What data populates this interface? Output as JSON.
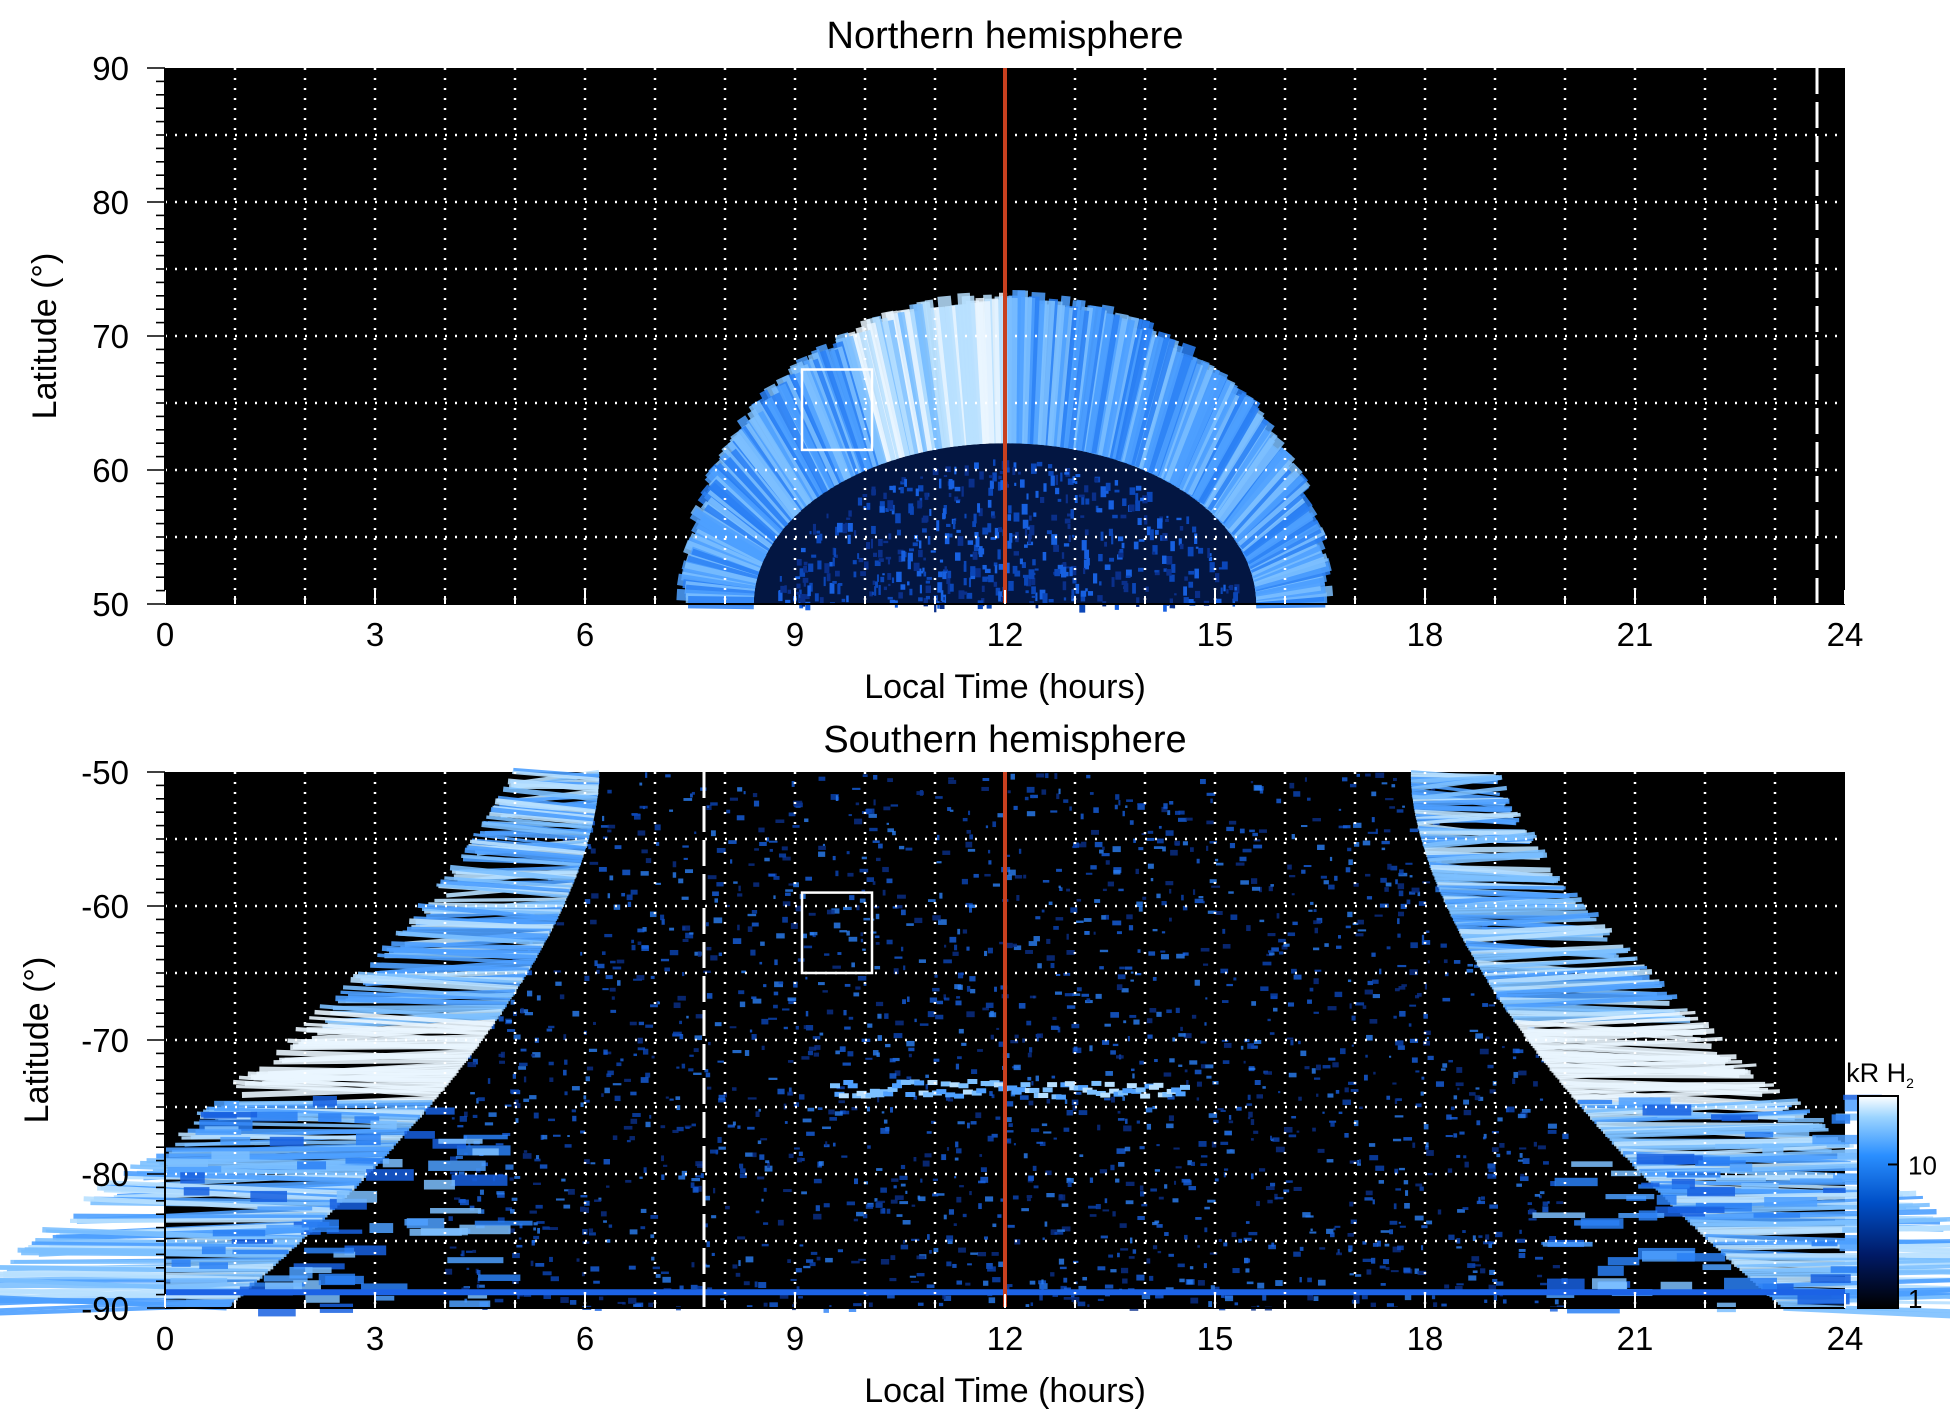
{
  "chart_data": [
    {
      "type": "heatmap",
      "title": "Northern hemisphere",
      "xlabel": "Local Time (hours)",
      "ylabel": "Latitude (°)",
      "xlim": [
        0,
        24
      ],
      "ylim": [
        50,
        90
      ],
      "x_ticks": [
        "0",
        "3",
        "6",
        "9",
        "12",
        "15",
        "18",
        "21",
        "24"
      ],
      "y_ticks": [
        "90",
        "80",
        "70",
        "60",
        "50"
      ],
      "grid": true,
      "oval": {
        "center_lt": 12.0,
        "half_width_lt": 4.6,
        "inner_lat_at_noon": 62,
        "outer_lat_at_noon": 73,
        "peak_brightness_lt": 12.9
      },
      "box": {
        "lt": [
          9.1,
          10.1
        ],
        "lat": [
          61.5,
          67.5
        ]
      },
      "vertical_lines": [
        {
          "lt": 12.0,
          "color": "#c8401f",
          "style": "solid"
        },
        {
          "lt": 23.6,
          "color": "#ffffff",
          "style": "dashed"
        }
      ]
    },
    {
      "type": "heatmap",
      "title": "Southern hemisphere",
      "xlabel": "Local Time (hours)",
      "ylabel": "Latitude (°)",
      "xlim": [
        0,
        24
      ],
      "ylim": [
        -90,
        -50
      ],
      "x_ticks": [
        "0",
        "3",
        "6",
        "9",
        "12",
        "15",
        "18",
        "21",
        "24"
      ],
      "y_ticks": [
        "-50",
        "-60",
        "-70",
        "-80",
        "-90"
      ],
      "grid": true,
      "oval": {
        "dawn_arc_lt_at_-50": 6.0,
        "dusk_arc_lt_at_-50": 18.0,
        "peak_lat": -71.5,
        "noon_ring_lat": -73.5
      },
      "box": {
        "lt": [
          9.1,
          10.1
        ],
        "lat": [
          -65,
          -59
        ]
      },
      "vertical_lines": [
        {
          "lt": 12.0,
          "color": "#c8401f",
          "style": "solid"
        },
        {
          "lt": 7.7,
          "color": "#ffffff",
          "style": "dashed"
        }
      ]
    }
  ],
  "colorbar": {
    "label_prefix": "kR H",
    "label_sub": "2",
    "ticks": [
      "1",
      "10"
    ],
    "scale": "log",
    "range": [
      1,
      30
    ],
    "colors": [
      "#000000",
      "#001a66",
      "#0050c8",
      "#2a8fff",
      "#9cd4ff",
      "#ffffff"
    ]
  },
  "colors": {
    "background": "#000000",
    "grid": "#ffffff",
    "noon_line": "#c8401f"
  }
}
